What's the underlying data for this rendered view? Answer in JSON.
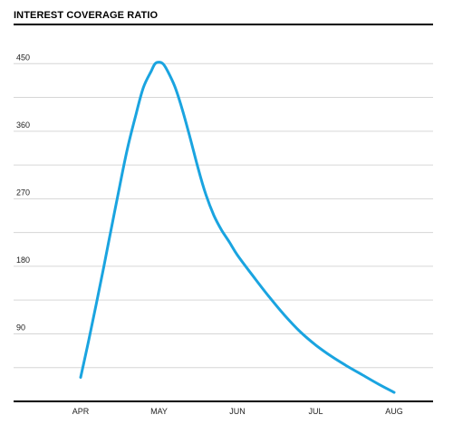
{
  "chart_data": {
    "type": "line",
    "title": "INTEREST COVERAGE RATIO",
    "xlabel": "",
    "ylabel": "",
    "x_categories": [
      "APR",
      "MAY",
      "JUN",
      "JUL",
      "AUG"
    ],
    "y_ticks": [
      "90",
      "180",
      "270",
      "360",
      "450"
    ],
    "ylim": [
      0,
      495
    ],
    "grid": true,
    "series": [
      {
        "color": "#1aa4e0",
        "x": [
          0.0,
          0.1,
          0.2,
          0.3,
          0.4,
          0.5,
          0.6,
          0.7,
          0.8,
          0.9,
          0.95,
          1.0,
          1.05,
          1.1,
          1.2,
          1.3,
          1.4,
          1.5,
          1.6,
          1.7,
          1.8,
          1.9,
          2.0,
          2.2,
          2.4,
          2.6,
          2.8,
          3.0,
          3.2,
          3.4,
          3.6,
          3.8,
          4.0
        ],
        "y": [
          32,
          80,
          130,
          182,
          235,
          288,
          338,
          380,
          418,
          440,
          450,
          452,
          450,
          442,
          420,
          388,
          350,
          310,
          275,
          248,
          228,
          212,
          195,
          167,
          140,
          115,
          93,
          75,
          60,
          47,
          35,
          23,
          12
        ]
      }
    ]
  }
}
